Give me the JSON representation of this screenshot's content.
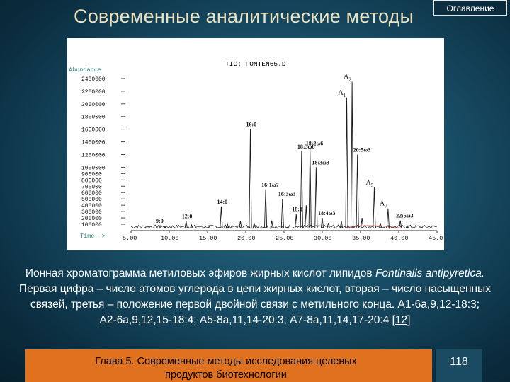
{
  "header": {
    "title": "Современные аналитические методы",
    "toc_label": "Оглавление"
  },
  "chart_data": {
    "type": "line",
    "title": "TIC: FONTEN65.D",
    "ylabel": "Abundance",
    "xlabel": "Time-->",
    "ylim": [
      0,
      2500000
    ],
    "xlim": [
      5,
      45
    ],
    "y_ticks": [
      {
        "v": 100000,
        "label": "100000"
      },
      {
        "v": 200000,
        "label": "200000"
      },
      {
        "v": 300000,
        "label": "300000"
      },
      {
        "v": 400000,
        "label": "400000"
      },
      {
        "v": 500000,
        "label": "500000"
      },
      {
        "v": 600000,
        "label": "600000"
      },
      {
        "v": 700000,
        "label": "700000"
      },
      {
        "v": 800000,
        "label": "800000"
      },
      {
        "v": 900000,
        "label": "900000"
      },
      {
        "v": 1000000,
        "label": "1000000"
      },
      {
        "v": 1200000,
        "label": "1200000"
      },
      {
        "v": 1400000,
        "label": "1400000"
      },
      {
        "v": 1600000,
        "label": "1600000"
      },
      {
        "v": 1800000,
        "label": "1800000"
      },
      {
        "v": 2000000,
        "label": "2000000"
      },
      {
        "v": 2200000,
        "label": "2200000"
      },
      {
        "v": 2400000,
        "label": "2400000"
      }
    ],
    "x_ticks": [
      {
        "v": 5,
        "label": "5.00"
      },
      {
        "v": 10,
        "label": "10.00"
      },
      {
        "v": 15,
        "label": "15.00"
      },
      {
        "v": 20,
        "label": "20.00"
      },
      {
        "v": 25,
        "label": "25.00"
      },
      {
        "v": 30,
        "label": "30.00"
      },
      {
        "v": 35,
        "label": "35.00"
      },
      {
        "v": 40,
        "label": "40.00"
      },
      {
        "v": 45,
        "label": "45.0"
      }
    ],
    "peaks": [
      {
        "x": 8.8,
        "y": 80000,
        "label": "9:0"
      },
      {
        "x": 9.4,
        "y": 60000
      },
      {
        "x": 12.2,
        "y": 150000,
        "label": "12:0"
      },
      {
        "x": 12.9,
        "y": 90000
      },
      {
        "x": 15.2,
        "y": 60000
      },
      {
        "x": 16.8,
        "y": 380000,
        "label": "14:0"
      },
      {
        "x": 17.6,
        "y": 110000
      },
      {
        "x": 19.3,
        "y": 150000
      },
      {
        "x": 20.6,
        "y": 1600000,
        "label": "16:0"
      },
      {
        "x": 21.1,
        "y": 120000
      },
      {
        "x": 22.6,
        "y": 650000,
        "label": "16:1ω7"
      },
      {
        "x": 23.4,
        "y": 160000
      },
      {
        "x": 24.8,
        "y": 500000,
        "label": "16:3ω3"
      },
      {
        "x": 26.6,
        "y": 260000,
        "label": "18:0"
      },
      {
        "x": 27.3,
        "y": 1250000,
        "label": "18:3ω6"
      },
      {
        "x": 27.9,
        "y": 400000
      },
      {
        "x": 28.4,
        "y": 1300000,
        "label": "18:2ω6"
      },
      {
        "x": 29.2,
        "y": 1000000,
        "label": "18:3ω3"
      },
      {
        "x": 30.0,
        "y": 200000,
        "label": "18:4ω3"
      },
      {
        "x": 30.8,
        "y": 120000
      },
      {
        "x": 32.5,
        "y": 150000
      },
      {
        "x": 33.2,
        "y": 2100000,
        "label": "A1"
      },
      {
        "x": 33.9,
        "y": 2350000,
        "label": "A2"
      },
      {
        "x": 34.6,
        "y": 1200000,
        "label": "20:5ω3"
      },
      {
        "x": 35.2,
        "y": 200000
      },
      {
        "x": 36.8,
        "y": 680000,
        "label": "A5"
      },
      {
        "x": 37.6,
        "y": 120000
      },
      {
        "x": 38.6,
        "y": 350000,
        "label": "A7"
      },
      {
        "x": 40.2,
        "y": 160000,
        "label": "22:5ω3"
      },
      {
        "x": 41.1,
        "y": 80000
      }
    ],
    "annotations": [
      {
        "text": "16:0",
        "x": 20.6,
        "y": 1600000
      },
      {
        "text": "18:2ω6",
        "x": 28.4,
        "y": 1300000
      },
      {
        "text": "18:3ω6",
        "x": 27.3,
        "y": 1250000
      },
      {
        "text": "18:3ω3",
        "x": 29.2,
        "y": 1000000
      },
      {
        "text": "16:1ω7",
        "x": 22.6,
        "y": 650000
      },
      {
        "text": "16:3ω3",
        "x": 24.8,
        "y": 500000
      },
      {
        "text": "14:0",
        "x": 16.8,
        "y": 380000
      },
      {
        "text": "18:0",
        "x": 26.6,
        "y": 260000
      },
      {
        "text": "18:4ω3",
        "x": 30.0,
        "y": 200000
      },
      {
        "text": "12:0",
        "x": 12.2,
        "y": 150000
      },
      {
        "text": "9:0",
        "x": 8.8,
        "y": 80000
      },
      {
        "text": "20:5ω3",
        "x": 34.6,
        "y": 1200000
      },
      {
        "text": "22:5ω3",
        "x": 40.2,
        "y": 160000
      }
    ],
    "arrow_labels": [
      {
        "text": "A",
        "sub": "1",
        "x": 33.2,
        "y": 2100000
      },
      {
        "text": "A",
        "sub": "2",
        "x": 33.9,
        "y": 2350000
      },
      {
        "text": "A",
        "sub": "5",
        "x": 36.8,
        "y": 680000
      },
      {
        "text": "A",
        "sub": "7",
        "x": 38.6,
        "y": 350000
      }
    ]
  },
  "caption": {
    "line1_a": "Ионная хроматограмма метиловых эфиров жирных кислот липидов ",
    "line1_species": "Fontinalis antipyretica.",
    "line2": "Первая цифра – число атомов углерода в цепи жирных кислот, вторая – число насыщенных",
    "line3": "связей, третья – положение первой двойной связи с метильного конца. А1-6а,9,12-18:3;",
    "line4_a": "А2-6а,9,12,15-18:4; А5-8а,11,14-20:3; А7-8а,11,14,17-20:4 [",
    "line4_ref": "12",
    "line4_b": "]"
  },
  "footer": {
    "chapter": "Глава 5. Современные методы исследования целевых продуктов биотехнологии",
    "page": "118"
  },
  "colors": {
    "background": "#184d66",
    "title": "#e9e2c2",
    "footer_bar": "#e0721f",
    "trace": "#1a1a1a",
    "abundance_label": "#2a7a70"
  }
}
